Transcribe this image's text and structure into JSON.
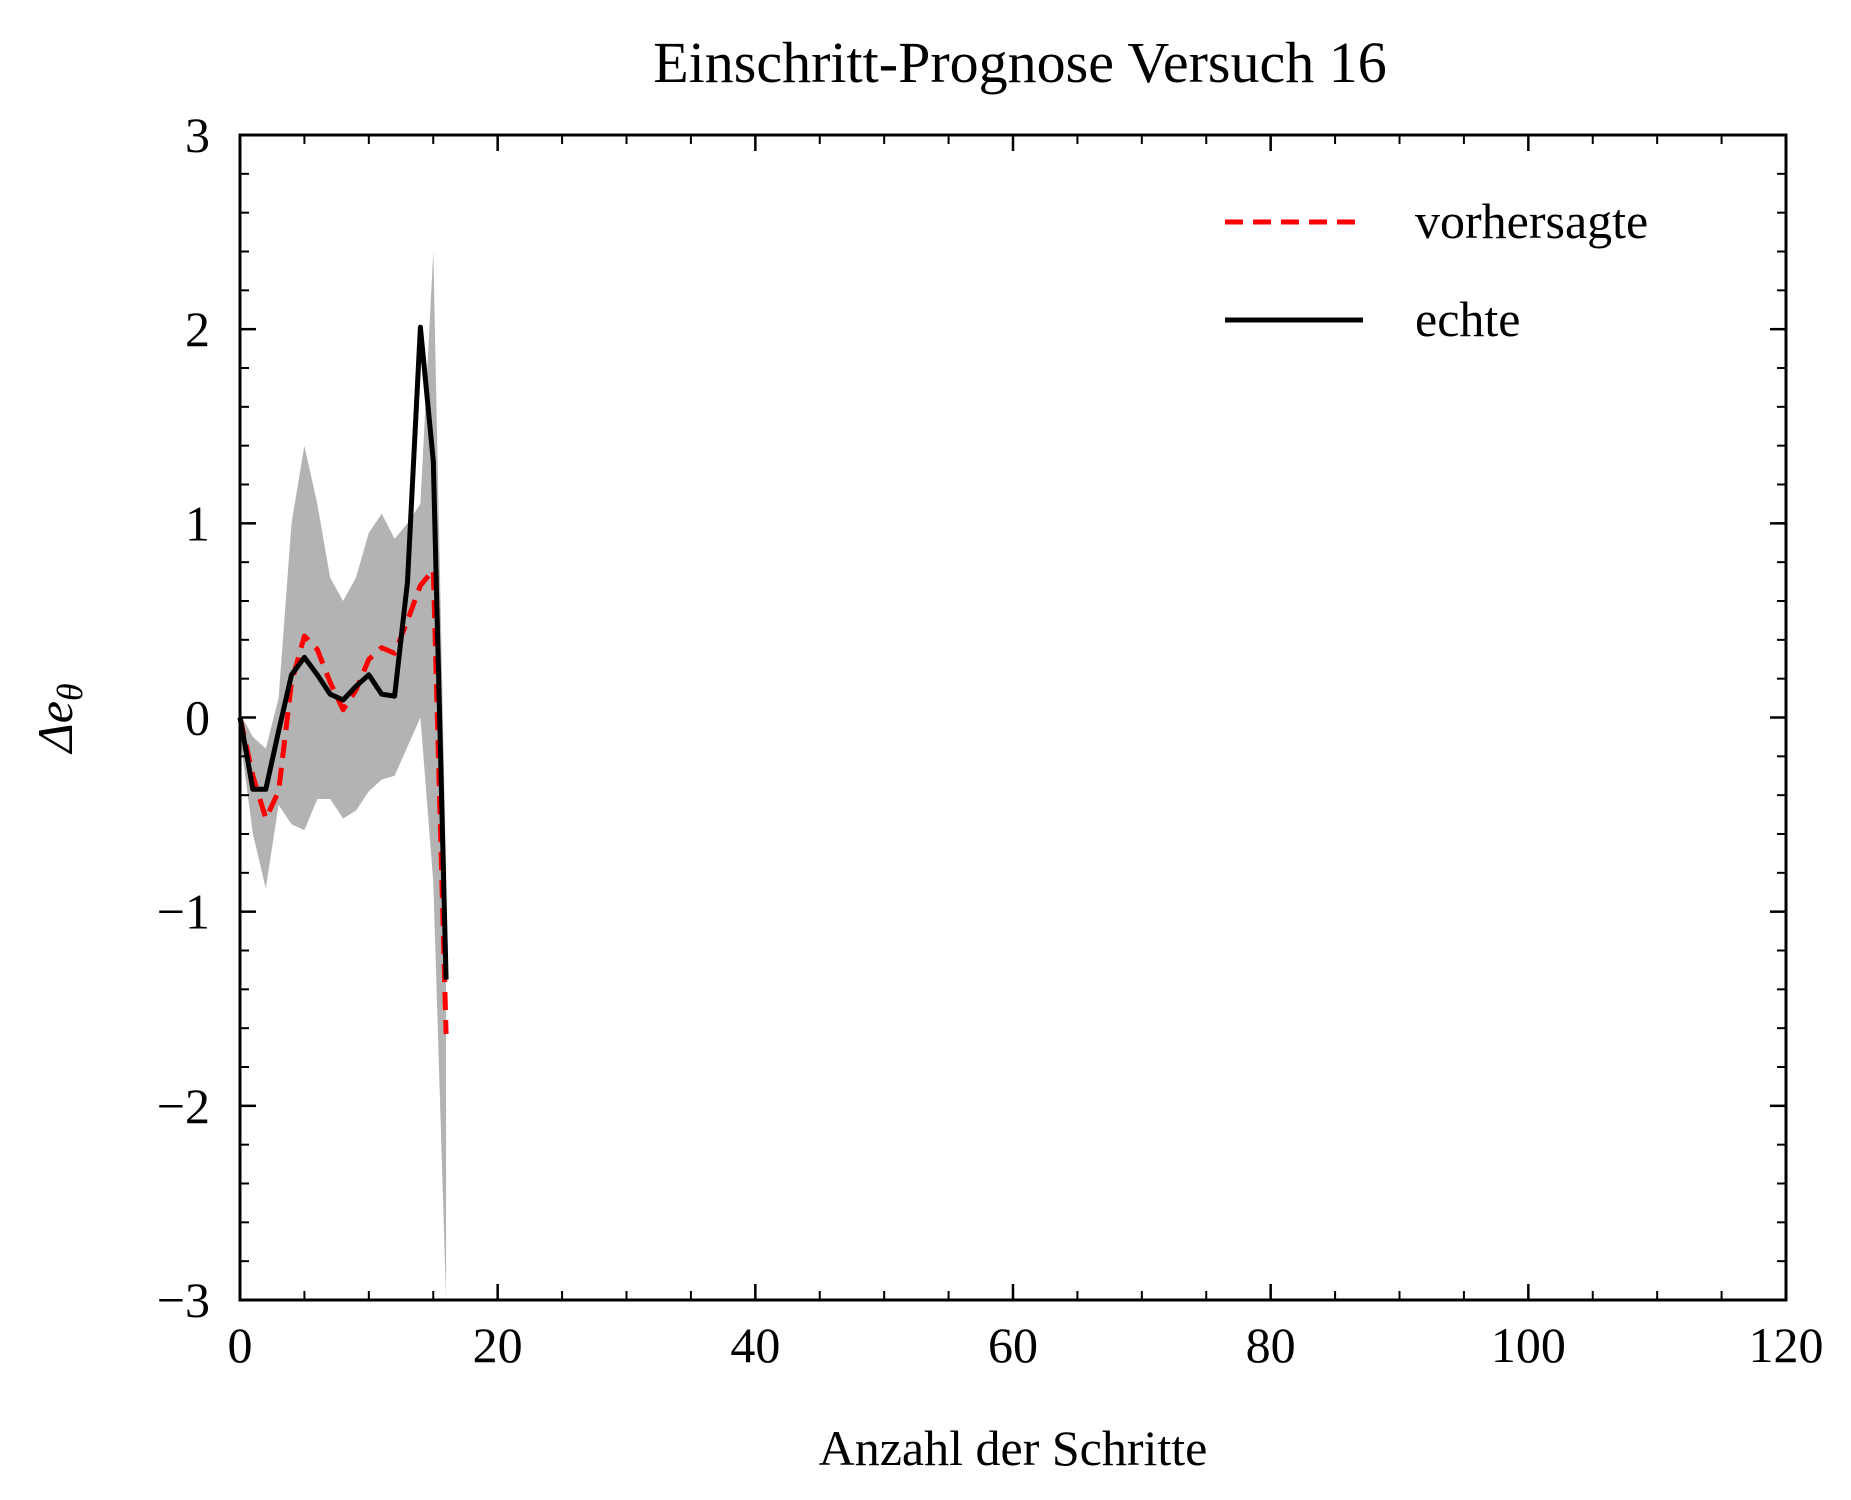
{
  "chart_data": {
    "type": "line",
    "title": "Einschritt-Prognose Versuch 16",
    "xlabel": "Anzahl der Schritte",
    "ylabel": "Δe",
    "ylabel_sub": "θ",
    "xlim": [
      0,
      120
    ],
    "ylim": [
      -3,
      3
    ],
    "x_ticks": [
      0,
      20,
      40,
      60,
      80,
      100,
      120
    ],
    "x_tick_labels": [
      "0",
      "20",
      "40",
      "60",
      "80",
      "100",
      "120"
    ],
    "y_ticks": [
      -3,
      -2,
      -1,
      0,
      1,
      2,
      3
    ],
    "y_tick_labels": [
      "−3",
      "−2",
      "−1",
      "0",
      "1",
      "2",
      "3"
    ],
    "grid": false,
    "legend_position": "top-right",
    "band": {
      "color": "#b3b3b3",
      "x": [
        0,
        1,
        2,
        3,
        4,
        5,
        6,
        7,
        8,
        9,
        10,
        11,
        12,
        13,
        14,
        15,
        16
      ],
      "upper": [
        0.02,
        -0.1,
        -0.16,
        0.1,
        1.0,
        1.4,
        1.1,
        0.72,
        0.6,
        0.72,
        0.95,
        1.05,
        0.92,
        1.0,
        1.1,
        2.4,
        -0.8
      ],
      "lower": [
        -0.1,
        -0.6,
        -0.88,
        -0.45,
        -0.55,
        -0.58,
        -0.42,
        -0.42,
        -0.52,
        -0.48,
        -0.38,
        -0.32,
        -0.3,
        -0.15,
        0.0,
        -0.85,
        -3.0
      ]
    },
    "series": [
      {
        "name": "vorhersagte",
        "color": "#ff0000",
        "dash": true,
        "x": [
          0,
          1,
          2,
          3,
          4,
          5,
          6,
          7,
          8,
          9,
          10,
          11,
          12,
          13,
          14,
          15,
          16
        ],
        "y": [
          0.0,
          -0.3,
          -0.52,
          -0.38,
          0.18,
          0.42,
          0.35,
          0.18,
          0.04,
          0.14,
          0.3,
          0.36,
          0.33,
          0.5,
          0.68,
          0.76,
          -1.63
        ]
      },
      {
        "name": "echte",
        "color": "#000000",
        "dash": false,
        "x": [
          0,
          1,
          2,
          3,
          4,
          5,
          6,
          7,
          8,
          9,
          10,
          11,
          12,
          13,
          14,
          15,
          16
        ],
        "y": [
          0.0,
          -0.37,
          -0.37,
          -0.07,
          0.22,
          0.31,
          0.22,
          0.12,
          0.09,
          0.16,
          0.22,
          0.12,
          0.11,
          0.7,
          2.01,
          1.32,
          -1.35
        ]
      }
    ]
  }
}
